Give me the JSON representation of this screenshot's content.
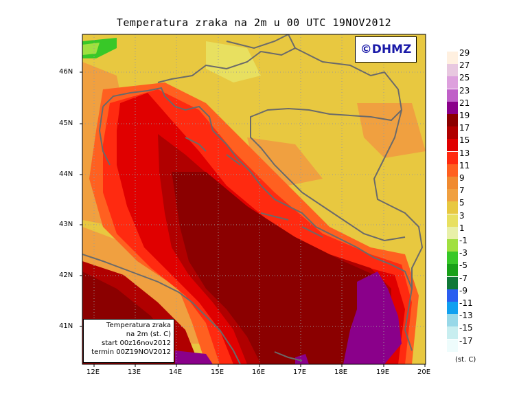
{
  "title": "Temperatura zraka na 2m u 00 UTC 19NOV2012",
  "logo": "©DHMZ",
  "info_box": {
    "line1": "Temperatura zraka",
    "line2": "na 2m (st. C)",
    "line3": "start 00z16nov2012",
    "line4": "termin 00Z19NOV2012"
  },
  "lat_labels": [
    "46N",
    "45N",
    "44N",
    "43N",
    "42N",
    "41N"
  ],
  "lon_labels": [
    "12E",
    "13E",
    "14E",
    "15E",
    "16E",
    "17E",
    "18E",
    "19E",
    "20E"
  ],
  "legend": {
    "levels": [
      "29",
      "27",
      "25",
      "23",
      "21",
      "19",
      "17",
      "15",
      "13",
      "11",
      "9",
      "7",
      "5",
      "3",
      "1",
      "-1",
      "-3",
      "-5",
      "-7",
      "-9",
      "-11",
      "-13",
      "-15",
      "-17"
    ],
    "colors": [
      "#fff0e0",
      "#e8c8e0",
      "#dda0dd",
      "#c060c8",
      "#8a008a",
      "#8b0000",
      "#b00000",
      "#e00000",
      "#ff2a10",
      "#ff6020",
      "#f08a30",
      "#f0a040",
      "#e8c840",
      "#e8e060",
      "#e8f0a8",
      "#a0e040",
      "#38c828",
      "#18a018",
      "#107838",
      "#2a5ef0",
      "#10a0f0",
      "#98d8e8",
      "#c8eef0",
      "#eefcfc"
    ],
    "units": "(st. C)"
  }
}
